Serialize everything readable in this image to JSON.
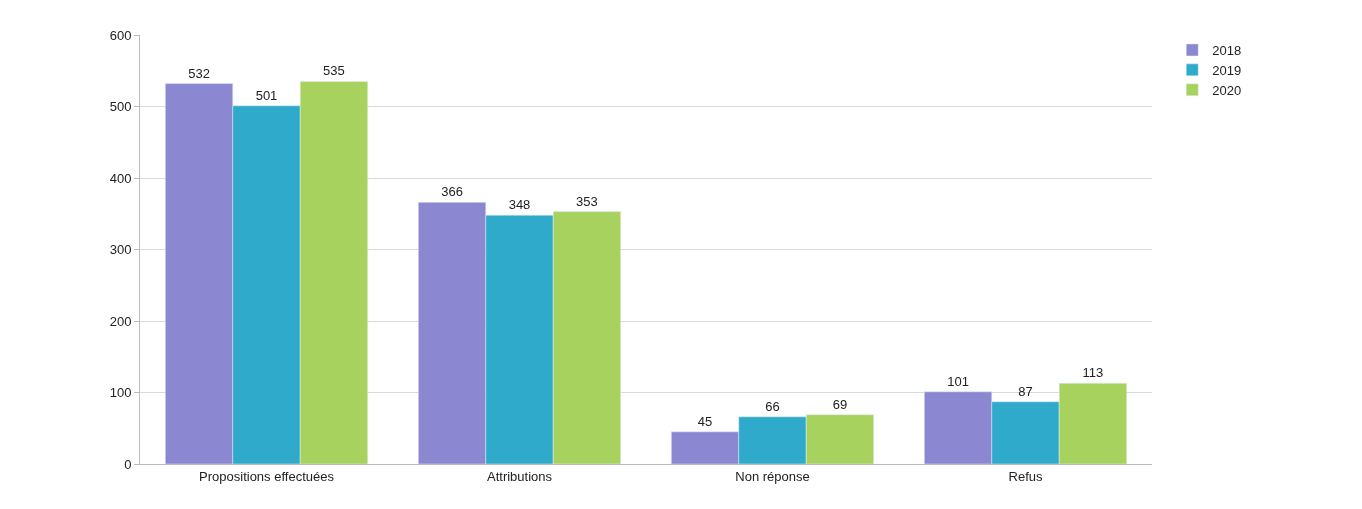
{
  "chart_data": {
    "type": "bar",
    "categories": [
      "Propositions effectuées",
      "Attributions",
      "Non réponse",
      "Refus"
    ],
    "series": [
      {
        "name": "2018",
        "color": "#8b87d0",
        "values": [
          532,
          366,
          45,
          101
        ]
      },
      {
        "name": "2019",
        "color": "#2faacb",
        "values": [
          501,
          348,
          66,
          87
        ]
      },
      {
        "name": "2020",
        "color": "#a8d25e",
        "values": [
          535,
          353,
          69,
          113
        ]
      }
    ],
    "ylim": [
      0,
      600
    ],
    "yticks": [
      0,
      100,
      200,
      300,
      400,
      500,
      600
    ],
    "grid": "y",
    "legend": "top right",
    "data_labels": true
  }
}
